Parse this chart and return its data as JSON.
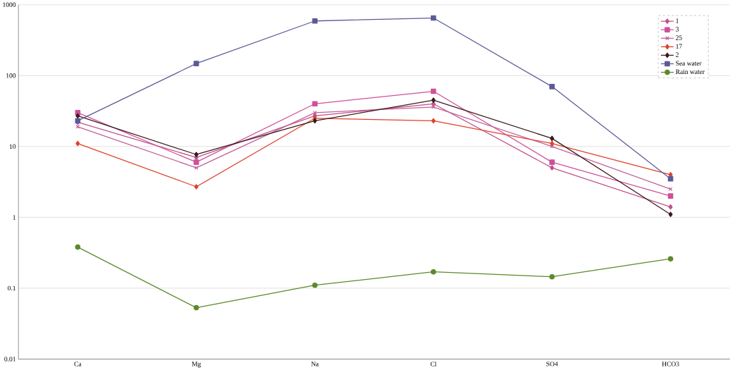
{
  "chart_data": {
    "type": "line",
    "log": "y",
    "grid": "y",
    "legend": "top right",
    "categories": [
      "Ca",
      "Mg",
      "Na",
      "Cl",
      "SO4",
      "HCO3"
    ],
    "ylim": [
      0.01,
      1000
    ],
    "yticks": [
      0.01,
      0.1,
      1,
      10,
      100,
      1000
    ],
    "series": [
      {
        "name": "1",
        "color": "#c0508a",
        "marker": "diamond",
        "values": [
          22,
          7,
          27,
          40,
          5,
          1.4
        ]
      },
      {
        "name": "3",
        "color": "#d04f9a",
        "marker": "square",
        "values": [
          30,
          6,
          40,
          60,
          6,
          2
        ]
      },
      {
        "name": "25",
        "color": "#c0609a",
        "marker": "cross",
        "values": [
          19,
          5,
          30,
          36,
          10,
          2.5
        ]
      },
      {
        "name": "17",
        "color": "#e0402a",
        "marker": "diamond",
        "values": [
          11,
          2.7,
          25,
          23,
          11,
          4
        ]
      },
      {
        "name": "2",
        "color": "#3a1a1a",
        "marker": "diamond",
        "values": [
          27,
          7.7,
          23,
          45,
          13,
          1.1
        ]
      },
      {
        "name": "Sea water",
        "color": "#5a5a9a",
        "marker": "square",
        "values": [
          23,
          148,
          590,
          650,
          70,
          3.5
        ]
      },
      {
        "name": "Rain water",
        "color": "#5a8a2a",
        "marker": "circle",
        "values": [
          0.38,
          0.053,
          0.11,
          0.17,
          0.145,
          0.26
        ]
      }
    ]
  }
}
